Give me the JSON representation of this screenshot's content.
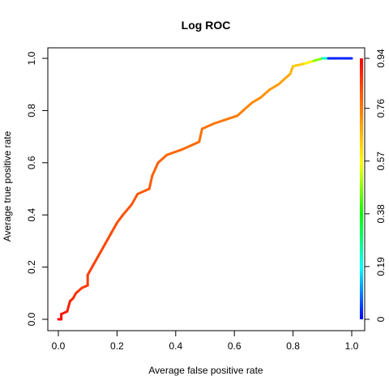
{
  "chart_data": {
    "type": "line",
    "title": "Log ROC",
    "xlabel": "Average false positive rate",
    "ylabel": "Average true positive rate",
    "xlim": [
      0,
      1
    ],
    "ylim": [
      0,
      1
    ],
    "x_ticks": [
      "0.0",
      "0.2",
      "0.4",
      "0.6",
      "0.8",
      "1.0"
    ],
    "y_ticks": [
      "0.0",
      "0.2",
      "0.4",
      "0.6",
      "0.8",
      "1.0"
    ],
    "grid": false,
    "colorbar": {
      "position": "right",
      "range": [
        0,
        0.94
      ],
      "ticks": [
        "0",
        "0.19",
        "0.38",
        "0.57",
        "0.76",
        "0.94"
      ],
      "tick_values": [
        0,
        0.19,
        0.38,
        0.57,
        0.76,
        0.94
      ],
      "colors": [
        "#0000ff",
        "#00ffff",
        "#00ff00",
        "#ffff00",
        "#ff7f00",
        "#ff0000"
      ]
    },
    "series": [
      {
        "points": [
          [
            0.0,
            0.0,
            0.94
          ],
          [
            0.01,
            0.0,
            0.93
          ],
          [
            0.01,
            0.02,
            0.92
          ],
          [
            0.03,
            0.03,
            0.9
          ],
          [
            0.04,
            0.07,
            0.89
          ],
          [
            0.05,
            0.08,
            0.88
          ],
          [
            0.06,
            0.1,
            0.87
          ],
          [
            0.08,
            0.12,
            0.86
          ],
          [
            0.1,
            0.13,
            0.86
          ],
          [
            0.1,
            0.17,
            0.85
          ],
          [
            0.12,
            0.21,
            0.85
          ],
          [
            0.14,
            0.25,
            0.84
          ],
          [
            0.16,
            0.29,
            0.84
          ],
          [
            0.18,
            0.33,
            0.83
          ],
          [
            0.2,
            0.37,
            0.83
          ],
          [
            0.22,
            0.4,
            0.82
          ],
          [
            0.25,
            0.44,
            0.82
          ],
          [
            0.27,
            0.48,
            0.81
          ],
          [
            0.31,
            0.5,
            0.81
          ],
          [
            0.32,
            0.55,
            0.8
          ],
          [
            0.34,
            0.6,
            0.8
          ],
          [
            0.37,
            0.63,
            0.79
          ],
          [
            0.42,
            0.65,
            0.79
          ],
          [
            0.48,
            0.68,
            0.78
          ],
          [
            0.49,
            0.73,
            0.77
          ],
          [
            0.53,
            0.75,
            0.77
          ],
          [
            0.61,
            0.78,
            0.76
          ],
          [
            0.63,
            0.8,
            0.75
          ],
          [
            0.66,
            0.83,
            0.74
          ],
          [
            0.69,
            0.85,
            0.73
          ],
          [
            0.72,
            0.88,
            0.72
          ],
          [
            0.75,
            0.9,
            0.71
          ],
          [
            0.77,
            0.92,
            0.7
          ],
          [
            0.79,
            0.94,
            0.69
          ],
          [
            0.8,
            0.97,
            0.66
          ],
          [
            0.84,
            0.98,
            0.62
          ],
          [
            0.87,
            0.99,
            0.55
          ],
          [
            0.9,
            1.0,
            0.4
          ],
          [
            0.92,
            1.0,
            0.05
          ],
          [
            1.0,
            1.0,
            0.0
          ]
        ]
      }
    ]
  }
}
